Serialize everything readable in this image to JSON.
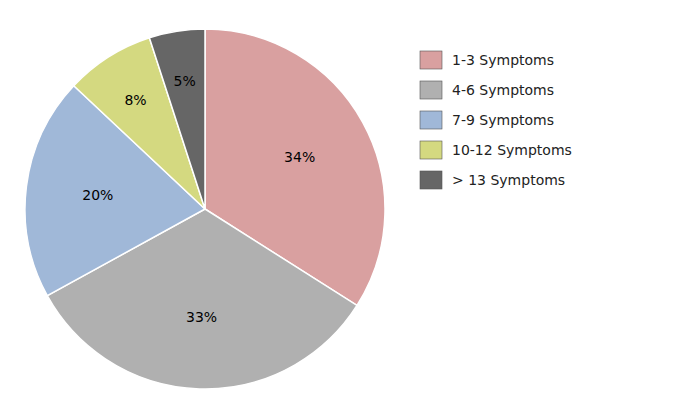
{
  "chart_data": {
    "type": "pie",
    "categories": [
      "1-3 Symptoms",
      "4-6 Symptoms",
      "7-9 Symptoms",
      "10-12 Symptoms",
      "> 13 Symptoms"
    ],
    "values": [
      34,
      33,
      20,
      8,
      5
    ],
    "value_labels": [
      "34%",
      "33%",
      "20%",
      "8%",
      "5%"
    ],
    "colors": [
      "#d9a0a0",
      "#b0b0b0",
      "#a0b8d8",
      "#d4d980",
      "#666666"
    ],
    "data_labels": true,
    "legend": "right"
  }
}
